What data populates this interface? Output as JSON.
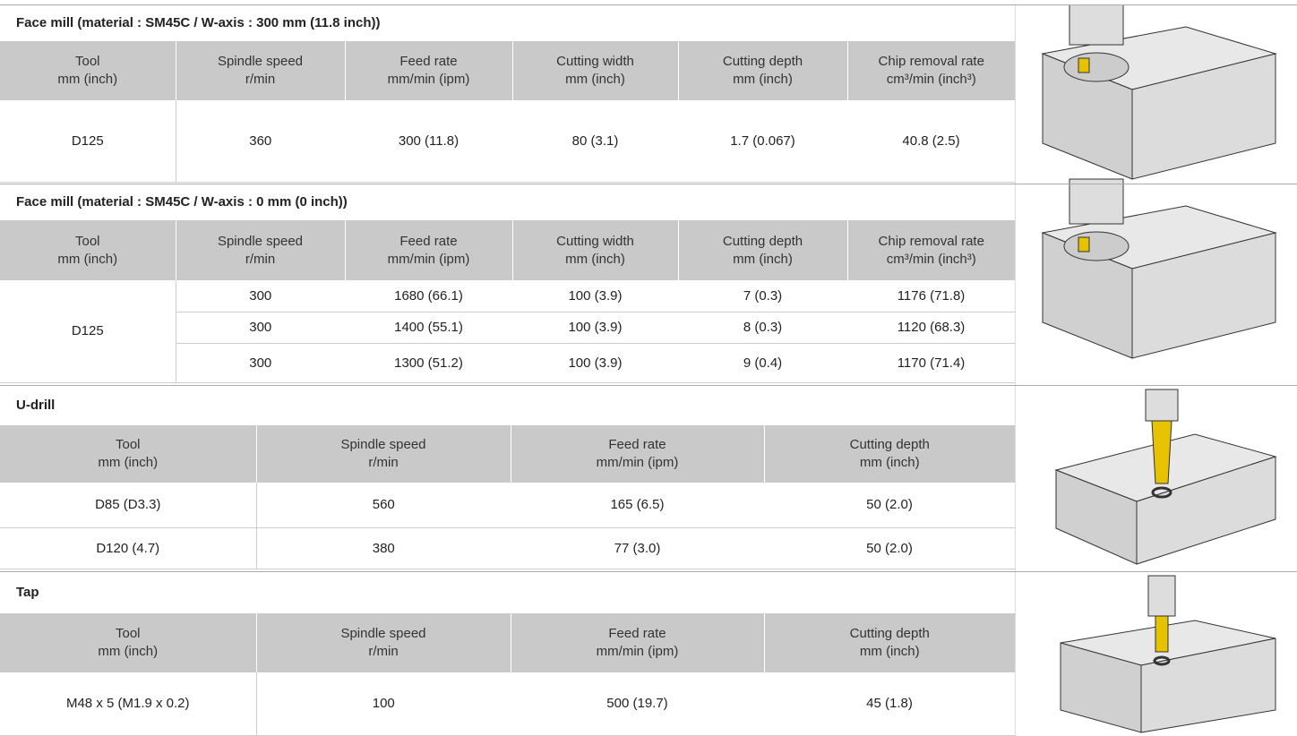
{
  "sections": [
    {
      "title": "Face mill (material : SM45C / W-axis : 300 mm (11.8 inch))",
      "headers": [
        [
          "Tool",
          "mm (inch)"
        ],
        [
          "Spindle speed",
          "r/min"
        ],
        [
          "Feed rate",
          "mm/min (ipm)"
        ],
        [
          "Cutting width",
          "mm (inch)"
        ],
        [
          "Cutting depth",
          "mm (inch)"
        ],
        [
          "Chip removal rate",
          "cm³/min (inch³)"
        ]
      ],
      "groups": [
        {
          "tool": "D125",
          "rows": [
            [
              "360",
              "300 (11.8)",
              "80 (3.1)",
              "1.7 (0.067)",
              "40.8 (2.5)"
            ]
          ]
        }
      ]
    },
    {
      "title": "Face mill (material : SM45C / W-axis : 0 mm (0 inch))",
      "headers": [
        [
          "Tool",
          "mm (inch)"
        ],
        [
          "Spindle speed",
          "r/min"
        ],
        [
          "Feed rate",
          "mm/min (ipm)"
        ],
        [
          "Cutting width",
          "mm (inch)"
        ],
        [
          "Cutting depth",
          "mm (inch)"
        ],
        [
          "Chip removal rate",
          "cm³/min (inch³)"
        ]
      ],
      "groups": [
        {
          "tool": "D125",
          "rows": [
            [
              "300",
              "1680 (66.1)",
              "100 (3.9)",
              "7 (0.3)",
              "1176 (71.8)"
            ],
            [
              "300",
              "1400 (55.1)",
              "100 (3.9)",
              "8 (0.3)",
              "1120 (68.3)"
            ],
            [
              "300",
              "1300 (51.2)",
              "100 (3.9)",
              "9 (0.4)",
              "1170 (71.4)"
            ]
          ]
        }
      ]
    },
    {
      "title": "U-drill",
      "headers": [
        [
          "Tool",
          "mm (inch)"
        ],
        [
          "Spindle speed",
          "r/min"
        ],
        [
          "Feed rate",
          "mm/min (ipm)"
        ],
        [
          "Cutting depth",
          "mm (inch)"
        ]
      ],
      "groups": [
        {
          "tool": "D85 (D3.3)",
          "rows": [
            [
              "560",
              "165 (6.5)",
              "50 (2.0)"
            ]
          ]
        },
        {
          "tool": "D120 (4.7)",
          "rows": [
            [
              "380",
              "77 (3.0)",
              "50 (2.0)"
            ]
          ]
        }
      ]
    },
    {
      "title": "Tap",
      "headers": [
        [
          "Tool",
          "mm (inch)"
        ],
        [
          "Spindle speed",
          "r/min"
        ],
        [
          "Feed rate",
          "mm/min (ipm)"
        ],
        [
          "Cutting depth",
          "mm (inch)"
        ]
      ],
      "groups": [
        {
          "tool": "M48 x 5 (M1.9 x 0.2)",
          "rows": [
            [
              "100",
              "500 (19.7)",
              "45 (1.8)"
            ]
          ]
        }
      ]
    }
  ]
}
